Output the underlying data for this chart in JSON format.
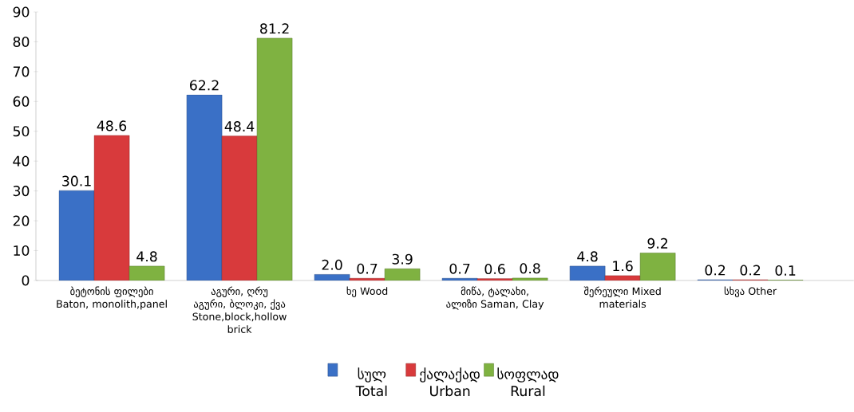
{
  "chart_data": {
    "type": "bar",
    "categories": [
      "ბეტონის ფილები Baton, monolith,panel",
      "აგური, ღრუ აგური, ბლოკი, ქვა Stone,block,hollow brick",
      "ხე Wood",
      "მიწა, ტალახი, ალიზი Saman, Clay",
      "შერეული Mixed materials",
      "სხვა Other"
    ],
    "series": [
      {
        "name": "სულ Total",
        "color": "#3a70c6",
        "values": [
          30.1,
          62.2,
          2.0,
          0.7,
          4.8,
          0.2
        ],
        "value_labels": [
          "30.1",
          "62.2",
          "2.0",
          "0.7",
          "4.8",
          "0.2"
        ]
      },
      {
        "name": "ქალაქად Urban",
        "color": "#d83a3c",
        "values": [
          48.6,
          48.4,
          0.7,
          0.6,
          1.6,
          0.2
        ],
        "value_labels": [
          "48.6",
          "48.4",
          "0.7",
          "0.6",
          "1.6",
          "0.2"
        ]
      },
      {
        "name": "სოფლად Rural",
        "color": "#7fb241",
        "values": [
          4.8,
          81.2,
          3.9,
          0.8,
          9.2,
          0.1
        ],
        "value_labels": [
          "4.8",
          "81.2",
          "3.9",
          "0.8",
          "9.2",
          "0.1"
        ]
      }
    ],
    "ylim": [
      0,
      90
    ],
    "yticks": [
      0,
      10,
      20,
      30,
      40,
      50,
      60,
      70,
      80,
      90
    ],
    "grid": false,
    "legend": "bottom"
  }
}
